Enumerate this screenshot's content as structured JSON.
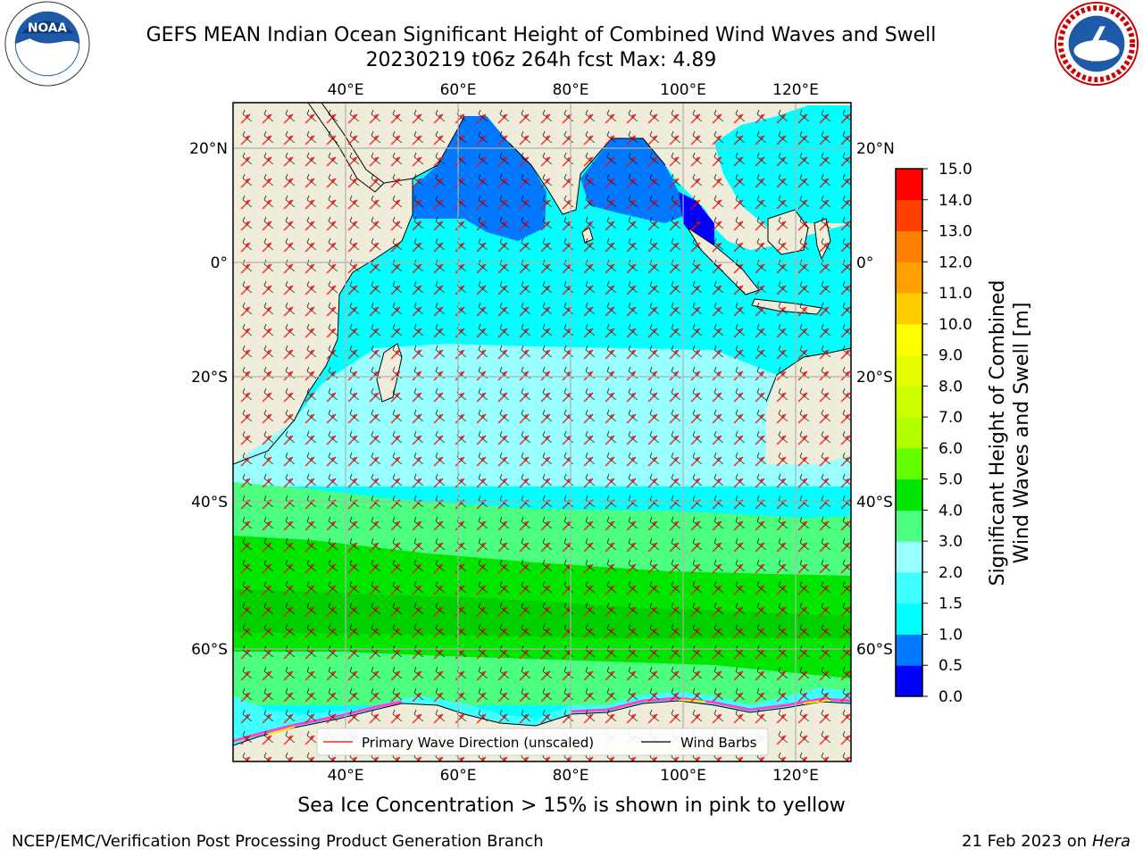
{
  "header": {
    "title_line1": "GEFS MEAN Indian Ocean Significant Height of Combined Wind Waves and Swell",
    "title_line2": "20230219 t06z 264h fcst   Max: 4.89"
  },
  "logos": {
    "left": {
      "name": "noaa-logo",
      "text": "NOAA"
    },
    "right": {
      "name": "national-weather-service-logo"
    }
  },
  "map": {
    "lon_range": [
      20,
      130
    ],
    "lat_range": [
      -74,
      28
    ],
    "top_lon_labels": [
      "40°E",
      "60°E",
      "80°E",
      "100°E",
      "120°E"
    ],
    "bottom_lon_labels": [
      "40°E",
      "60°E",
      "80°E",
      "100°E",
      "120°E"
    ],
    "left_lat_labels": [
      "20°N",
      "0°",
      "20°S",
      "40°S",
      "60°S"
    ],
    "right_lat_labels": [
      "20°N",
      "0°",
      "20°S",
      "40°S",
      "60°S"
    ],
    "grid": true,
    "colors": {
      "land": "#efedda",
      "ocean_low": "#00ffff",
      "ocean_mid": "#80ffff",
      "ocean_high": "#00e600",
      "ocean_band": "#4cff80"
    }
  },
  "legend": {
    "wave_direction": "Primary Wave Direction (unscaled)",
    "wind_barbs": "Wind Barbs",
    "wave_direction_color": "#ff0000",
    "wind_barbs_color": "#000000"
  },
  "colorbar": {
    "label_line1": "Significant Height of Combined",
    "label_line2": "Wind Waves and Swell [m]",
    "ticks": [
      "0.0",
      "0.5",
      "1.0",
      "1.5",
      "2.0",
      "3.0",
      "4.0",
      "5.0",
      "6.0",
      "7.0",
      "8.0",
      "9.0",
      "10.0",
      "11.0",
      "12.0",
      "13.0",
      "14.0",
      "15.0"
    ],
    "colors": [
      "#0000ff",
      "#0078ff",
      "#00ffff",
      "#40ffff",
      "#99ffff",
      "#4cff80",
      "#00e600",
      "#66ff00",
      "#b3ff00",
      "#ccff00",
      "#e6ff00",
      "#ffff00",
      "#ffcc00",
      "#ffa000",
      "#ff8000",
      "#ff4000",
      "#ff0000"
    ]
  },
  "subtitle": "Sea Ice Concentration > 15% is shown in pink to yellow",
  "footer": {
    "left": "NCEP/EMC/Verification Post Processing Product Generation Branch",
    "right_date": "21 Feb 2023 on",
    "right_host": "Hera"
  }
}
